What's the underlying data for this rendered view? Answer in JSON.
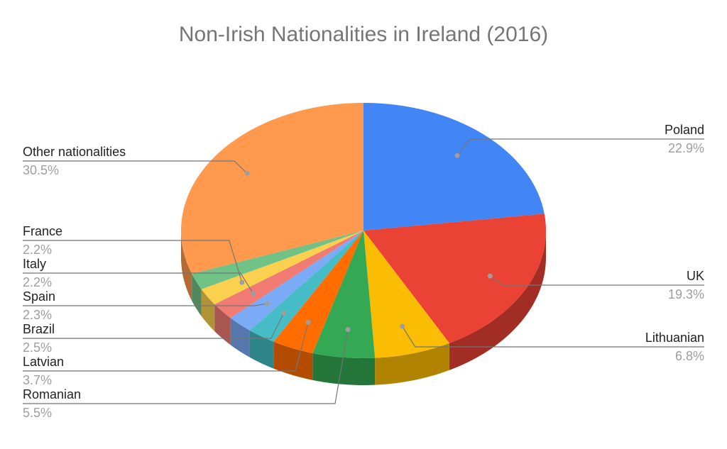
{
  "chart_data": {
    "type": "pie",
    "title": "Non-Irish Nationalities in Ireland (2016)",
    "three_d": true,
    "slices": [
      {
        "label": "Poland",
        "value": 22.9,
        "percent_label": "22.9%",
        "color": "#4285F4",
        "side_color": "#2A56A0"
      },
      {
        "label": "UK",
        "value": 19.3,
        "percent_label": "19.3%",
        "color": "#EA4335",
        "side_color": "#A12D24"
      },
      {
        "label": "Lithuanian",
        "value": 6.8,
        "percent_label": "6.8%",
        "color": "#FBBC04",
        "side_color": "#B08400"
      },
      {
        "label": "Romanian",
        "value": 5.5,
        "percent_label": "5.5%",
        "color": "#34A853",
        "side_color": "#237538"
      },
      {
        "label": "Latvian",
        "value": 3.7,
        "percent_label": "3.7%",
        "color": "#FF6D01",
        "side_color": "#B34C00"
      },
      {
        "label": "Brazil",
        "value": 2.5,
        "percent_label": "2.5%",
        "color": "#46BDC6",
        "side_color": "#2F848A"
      },
      {
        "label": "Spain",
        "value": 2.3,
        "percent_label": "2.3%",
        "color": "#7BAAF7",
        "side_color": "#5677AD"
      },
      {
        "label": "Italy",
        "value": 2.2,
        "percent_label": "2.2%",
        "color": "#F07B72",
        "side_color": "#A8564F"
      },
      {
        "label": "France",
        "value": 2.2,
        "percent_label": "2.2%",
        "color": "#FCD04F",
        "side_color": "#B09237"
      },
      {
        "label": "",
        "value": 2.1,
        "percent_label": "",
        "color": "#71C287",
        "side_color": "#4F885E"
      },
      {
        "label": "Other nationalities",
        "value": 30.5,
        "percent_label": "30.5%",
        "color": "#FF994D",
        "side_color": "#B36B36"
      }
    ]
  }
}
